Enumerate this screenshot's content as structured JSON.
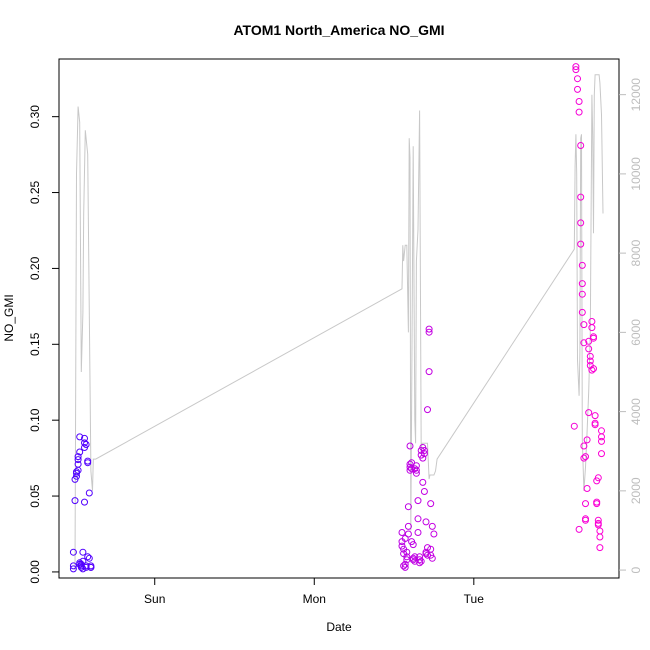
{
  "chart_data": {
    "type": "scatter",
    "title": "ATOM1 North_America NO_GMI",
    "xlabel": "Date",
    "ylabel": "NO_GMI",
    "x_unit": "days since Sat 00:00",
    "xlim": [
      1.4,
      4.91
    ],
    "ylim": [
      -0.004,
      0.338
    ],
    "x_ticks": [
      {
        "value": 2,
        "label": "Sun"
      },
      {
        "value": 3,
        "label": "Mon"
      },
      {
        "value": 4,
        "label": "Tue"
      }
    ],
    "y_ticks": [
      0.0,
      0.05,
      0.1,
      0.15,
      0.2,
      0.25,
      0.3
    ],
    "y_tick_labels": [
      "0.00",
      "0.05",
      "0.10",
      "0.15",
      "0.20",
      "0.25",
      "0.30"
    ],
    "y2lim": [
      -200,
      12900
    ],
    "y2_ticks": [
      0,
      2000,
      4000,
      6000,
      8000,
      10000,
      12000
    ],
    "y2_tick_labels": [
      "0",
      "2000",
      "4000",
      "6000",
      "8000",
      "10000",
      "12000"
    ],
    "color_ramp": [
      "#4c00ff",
      "#ff00d4"
    ],
    "altitude_color": "#c8c8c8",
    "altitude": {
      "x": [
        1.5,
        1.51,
        1.52,
        1.53,
        1.54,
        1.55,
        1.555,
        1.565,
        1.58,
        1.6,
        1.61,
        1.615,
        1.62,
        1.63,
        3.55,
        3.555,
        3.56,
        3.57,
        3.58,
        3.59,
        3.595,
        3.6,
        3.605,
        3.61,
        3.62,
        3.63,
        3.635,
        3.64,
        3.65,
        3.66,
        3.67,
        3.675,
        3.68,
        3.69,
        3.7,
        3.705,
        3.71,
        3.72,
        3.725,
        3.73,
        3.735,
        3.74,
        3.75,
        3.76,
        3.77,
        4.63,
        4.635,
        4.64,
        4.645,
        4.65,
        4.66,
        4.665,
        4.67,
        4.675,
        4.68,
        4.69,
        4.7,
        4.71,
        4.72,
        4.73,
        4.74,
        4.745,
        4.75,
        4.755,
        4.76,
        4.77,
        4.78,
        4.785,
        4.79,
        4.8,
        4.81
      ],
      "y": [
        0,
        10000,
        11700,
        11300,
        5000,
        6500,
        9000,
        11100,
        10500,
        2500,
        2000,
        2800,
        2800,
        2800,
        7100,
        8200,
        7800,
        8200,
        8200,
        6000,
        10900,
        10400,
        1000,
        4000,
        10700,
        3800,
        3200,
        7800,
        8600,
        11600,
        3000,
        3200,
        3200,
        3200,
        3200,
        3200,
        3200,
        2300,
        2400,
        2400,
        2400,
        2400,
        2400,
        2500,
        2800,
        8100,
        10200,
        11000,
        10000,
        5300,
        4400,
        5500,
        10900,
        11000,
        3300,
        2000,
        2600,
        3500,
        4500,
        6000,
        12000,
        11000,
        8500,
        12000,
        12500,
        12500,
        12500,
        12500,
        12300,
        11500,
        9000
      ]
    },
    "series": [
      {
        "x": [
          1.49,
          1.49,
          1.49,
          1.5,
          1.5,
          1.51,
          1.51,
          1.51,
          1.52,
          1.52,
          1.52,
          1.52,
          1.53,
          1.53,
          1.53,
          1.53,
          1.54,
          1.54,
          1.54,
          1.55,
          1.55,
          1.55,
          1.56,
          1.56,
          1.56,
          1.56,
          1.57,
          1.57,
          1.57,
          1.58,
          1.58,
          1.58,
          1.59,
          1.59,
          1.6,
          1.6,
          1.6
        ],
        "y": [
          0.002,
          0.004,
          0.013,
          0.047,
          0.061,
          0.063,
          0.065,
          0.066,
          0.067,
          0.071,
          0.074,
          0.076,
          0.079,
          0.089,
          0.005,
          0.006,
          0.003,
          0.004,
          0.005,
          0.007,
          0.013,
          0.002,
          0.046,
          0.088,
          0.085,
          0.082,
          0.084,
          0.003,
          0.004,
          0.072,
          0.073,
          0.01,
          0.052,
          0.009,
          0.003,
          0.003,
          0.004
        ]
      },
      {
        "x": [
          3.55,
          3.55,
          3.55,
          3.56,
          3.56,
          3.56,
          3.57,
          3.57,
          3.57,
          3.58,
          3.58,
          3.58,
          3.59,
          3.59,
          3.59,
          3.6,
          3.6,
          3.6,
          3.6,
          3.61,
          3.61,
          3.61,
          3.62,
          3.62,
          3.62,
          3.63,
          3.63,
          3.63,
          3.64,
          3.64,
          3.64,
          3.65,
          3.65,
          3.65,
          3.66,
          3.66,
          3.66,
          3.67,
          3.67,
          3.67,
          3.68,
          3.68,
          3.68,
          3.69,
          3.69,
          3.69,
          3.7,
          3.7,
          3.7,
          3.71,
          3.71,
          3.71,
          3.72,
          3.72,
          3.72,
          3.73,
          3.73,
          3.73,
          3.74,
          3.74,
          3.75
        ],
        "y": [
          0.026,
          0.02,
          0.017,
          0.015,
          0.012,
          0.004,
          0.003,
          0.022,
          0.005,
          0.01,
          0.008,
          0.013,
          0.025,
          0.03,
          0.043,
          0.083,
          0.069,
          0.071,
          0.067,
          0.068,
          0.072,
          0.02,
          0.018,
          0.009,
          0.008,
          0.01,
          0.007,
          0.068,
          0.065,
          0.07,
          0.067,
          0.047,
          0.026,
          0.035,
          0.006,
          0.008,
          0.01,
          0.007,
          0.08,
          0.077,
          0.075,
          0.082,
          0.059,
          0.053,
          0.078,
          0.08,
          0.012,
          0.033,
          0.013,
          0.011,
          0.016,
          0.107,
          0.132,
          0.158,
          0.16,
          0.045,
          0.015,
          0.011,
          0.009,
          0.03,
          0.025
        ]
      },
      {
        "x": [
          4.63,
          4.64,
          4.64,
          4.65,
          4.65,
          4.66,
          4.66,
          4.66,
          4.67,
          4.67,
          4.67,
          4.67,
          4.68,
          4.68,
          4.68,
          4.68,
          4.69,
          4.69,
          4.69,
          4.69,
          4.7,
          4.7,
          4.7,
          4.7,
          4.71,
          4.71,
          4.72,
          4.72,
          4.72,
          4.73,
          4.73,
          4.73,
          4.74,
          4.74,
          4.74,
          4.75,
          4.75,
          4.75,
          4.76,
          4.76,
          4.76,
          4.77,
          4.77,
          4.77,
          4.78,
          4.78,
          4.78,
          4.78,
          4.79,
          4.79,
          4.79,
          4.8,
          4.8,
          4.8,
          4.8
        ],
        "y": [
          0.096,
          0.333,
          0.331,
          0.325,
          0.318,
          0.31,
          0.303,
          0.028,
          0.281,
          0.247,
          0.23,
          0.216,
          0.202,
          0.19,
          0.183,
          0.171,
          0.163,
          0.151,
          0.075,
          0.083,
          0.076,
          0.045,
          0.034,
          0.035,
          0.055,
          0.087,
          0.105,
          0.152,
          0.147,
          0.142,
          0.139,
          0.136,
          0.133,
          0.161,
          0.165,
          0.155,
          0.154,
          0.134,
          0.098,
          0.097,
          0.103,
          0.06,
          0.046,
          0.045,
          0.062,
          0.034,
          0.031,
          0.032,
          0.027,
          0.023,
          0.016,
          0.093,
          0.078,
          0.086,
          0.089
        ]
      }
    ]
  }
}
